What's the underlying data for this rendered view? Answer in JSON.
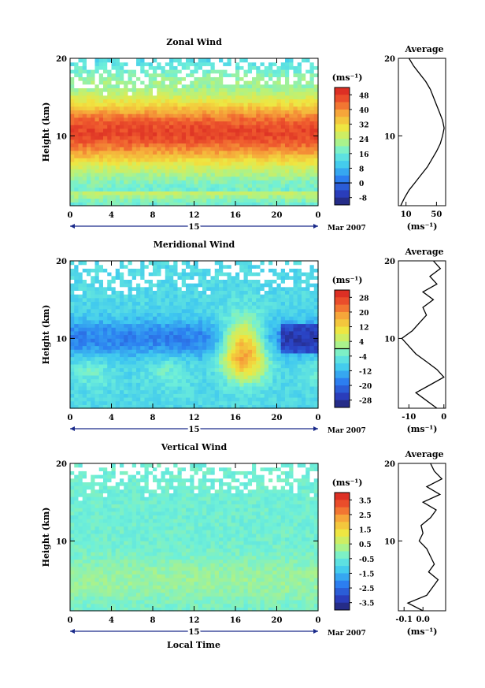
{
  "figure": {
    "date_label": "Mar 2007",
    "day_label": "15",
    "xlabel": "Local Time",
    "unit_label": "(ms⁻¹)",
    "avg_unit_label": "(ms⁻¹)"
  },
  "chart_data": [
    {
      "type": "heatmap",
      "title": "Zonal Wind",
      "ylabel": "Height (km)",
      "xlabel": "",
      "x_ticks": [
        "0",
        "4",
        "8",
        "12",
        "16",
        "20",
        "0"
      ],
      "x_range_hours": [
        0,
        24
      ],
      "y_ticks": [
        "10",
        "20"
      ],
      "y_range_km": [
        1,
        20
      ],
      "colorbar": {
        "label": "(ms⁻¹)",
        "ticks": [
          "48",
          "40",
          "32",
          "24",
          "16",
          "8",
          "0",
          "-8"
        ],
        "range": [
          -12,
          52
        ],
        "zero_line": true
      },
      "average_profile": {
        "title": "Average",
        "x_ticks": [
          "10",
          "50"
        ],
        "x_range": [
          0,
          62
        ],
        "y_ticks": [
          "10",
          "20"
        ],
        "points": [
          [
            3,
            1
          ],
          [
            8,
            2
          ],
          [
            14,
            3
          ],
          [
            22,
            4
          ],
          [
            30,
            5
          ],
          [
            38,
            6
          ],
          [
            44,
            7
          ],
          [
            50,
            8
          ],
          [
            55,
            9
          ],
          [
            58,
            10
          ],
          [
            60,
            11
          ],
          [
            58,
            12
          ],
          [
            54,
            13
          ],
          [
            50,
            14
          ],
          [
            46,
            15
          ],
          [
            42,
            16
          ],
          [
            36,
            17
          ],
          [
            28,
            18
          ],
          [
            20,
            19
          ],
          [
            14,
            20
          ]
        ]
      }
    },
    {
      "type": "heatmap",
      "title": "Meridional Wind",
      "ylabel": "Height (km)",
      "xlabel": "",
      "x_ticks": [
        "0",
        "4",
        "8",
        "12",
        "16",
        "20",
        "0"
      ],
      "x_range_hours": [
        0,
        24
      ],
      "y_ticks": [
        "10",
        "20"
      ],
      "y_range_km": [
        1,
        20
      ],
      "colorbar": {
        "label": "(ms⁻¹)",
        "ticks": [
          "28",
          "20",
          "12",
          "4",
          "-4",
          "-12",
          "-20",
          "-28"
        ],
        "range": [
          -32,
          32
        ],
        "zero_line": true
      },
      "average_profile": {
        "title": "Average",
        "x_ticks": [
          "-10",
          "0"
        ],
        "x_range": [
          -13,
          0.5
        ],
        "y_ticks": [
          "10",
          "20"
        ],
        "points": [
          [
            -2,
            1
          ],
          [
            -5,
            2
          ],
          [
            -8,
            3
          ],
          [
            -4,
            4
          ],
          [
            0,
            5
          ],
          [
            -2,
            6
          ],
          [
            -5,
            7
          ],
          [
            -8,
            8
          ],
          [
            -10,
            9
          ],
          [
            -12,
            10
          ],
          [
            -9,
            11
          ],
          [
            -7,
            12
          ],
          [
            -5,
            13
          ],
          [
            -6,
            14
          ],
          [
            -3,
            15
          ],
          [
            -6,
            16
          ],
          [
            -2,
            17
          ],
          [
            -4,
            18
          ],
          [
            -1,
            19
          ],
          [
            -3,
            20
          ]
        ]
      }
    },
    {
      "type": "heatmap",
      "title": "Vertical Wind",
      "ylabel": "Height (km)",
      "xlabel": "Local Time",
      "x_ticks": [
        "0",
        "4",
        "8",
        "12",
        "16",
        "20",
        "0"
      ],
      "x_range_hours": [
        0,
        24
      ],
      "y_ticks": [
        "10",
        "20"
      ],
      "y_range_km": [
        1,
        20
      ],
      "colorbar": {
        "label": "(ms⁻¹)",
        "ticks": [
          "3.5",
          "2.5",
          "1.5",
          "0.5",
          "-0.5",
          "-1.5",
          "-2.5",
          "-3.5"
        ],
        "range": [
          -4,
          4
        ],
        "zero_line": false
      },
      "average_profile": {
        "title": "Average",
        "x_ticks": [
          "-0.1",
          "0.0"
        ],
        "x_range": [
          -0.13,
          0.12
        ],
        "y_ticks": [
          "10",
          "20"
        ],
        "points": [
          [
            0.0,
            1
          ],
          [
            -0.08,
            2
          ],
          [
            0.02,
            3
          ],
          [
            0.05,
            4
          ],
          [
            0.08,
            5
          ],
          [
            0.03,
            6
          ],
          [
            0.06,
            7
          ],
          [
            0.04,
            8
          ],
          [
            0.02,
            9
          ],
          [
            -0.02,
            10
          ],
          [
            0.0,
            11
          ],
          [
            -0.01,
            12
          ],
          [
            0.04,
            13
          ],
          [
            0.07,
            14
          ],
          [
            0.0,
            15
          ],
          [
            0.09,
            16
          ],
          [
            0.02,
            17
          ],
          [
            0.1,
            18
          ],
          [
            0.06,
            19
          ],
          [
            0.04,
            20
          ]
        ]
      }
    }
  ]
}
